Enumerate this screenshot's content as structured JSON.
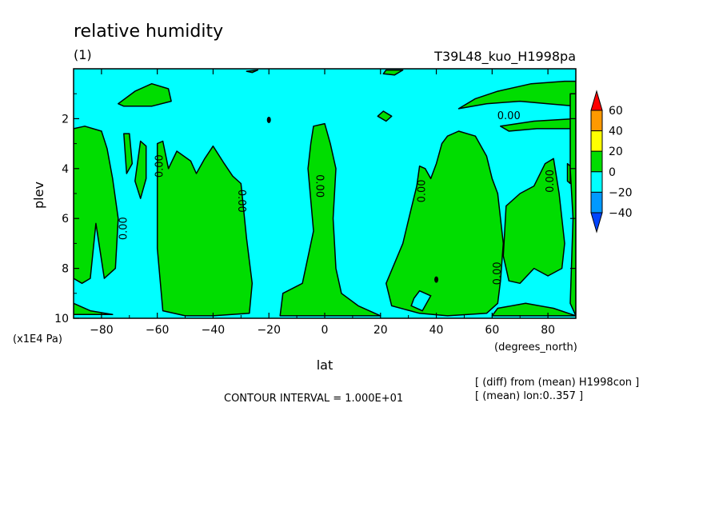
{
  "chart_data": {
    "type": "contour",
    "title": "relative humidity",
    "subtitle": "(1)",
    "experiment": "T39L48_kuo_H1998pa",
    "xlabel": "lat",
    "xunits": "(degrees_north)",
    "ylabel": "plev",
    "yunits": "(x1E4 Pa)",
    "xlim": [
      -90,
      90
    ],
    "ylim": [
      10,
      0
    ],
    "x_ticks": [
      -80,
      -60,
      -40,
      -20,
      0,
      20,
      40,
      60,
      80
    ],
    "y_ticks": [
      2,
      4,
      6,
      8,
      10
    ],
    "contour_interval_text": "CONTOUR INTERVAL = 1.000E+01",
    "contour_label": "0.00",
    "notes": [
      "[ (diff) from (mean) H1998con ]",
      "[ (mean) lon:0..357 ]"
    ],
    "colorbar": {
      "levels": [
        60,
        40,
        20,
        0,
        -20,
        -40
      ],
      "colors": [
        "#ff0000",
        "#ff9900",
        "#ffff00",
        "#00dd00",
        "#00ffff",
        "#0099ff",
        "#0044ff"
      ]
    },
    "background_color": "#00ffff",
    "positive_region_color": "#00dd00",
    "positive_regions": [
      {
        "name": "lower-north-tip",
        "points": [
          [
            -90,
            9.4
          ],
          [
            -84,
            9.7
          ],
          [
            -76,
            9.85
          ],
          [
            -90,
            9.85
          ]
        ]
      },
      {
        "name": "top-south-blob",
        "points": [
          [
            -74,
            1.4
          ],
          [
            -68,
            0.9
          ],
          [
            -62,
            0.6
          ],
          [
            -56,
            0.8
          ],
          [
            -55,
            1.3
          ],
          [
            -62,
            1.5
          ],
          [
            -72,
            1.5
          ]
        ]
      },
      {
        "name": "top-mid-sliver",
        "points": [
          [
            -28,
            0.1
          ],
          [
            -24,
            0.05
          ],
          [
            -26,
            0.15
          ]
        ]
      },
      {
        "name": "top-center-sliver",
        "points": [
          [
            22,
            0.05
          ],
          [
            28,
            0.05
          ],
          [
            25,
            0.25
          ],
          [
            21,
            0.2
          ]
        ]
      },
      {
        "name": "small-blob-20",
        "points": [
          [
            19,
            1.9
          ],
          [
            21,
            1.7
          ],
          [
            24,
            1.9
          ],
          [
            22,
            2.1
          ]
        ]
      },
      {
        "name": "top-north-blob",
        "points": [
          [
            48,
            1.6
          ],
          [
            54,
            1.2
          ],
          [
            62,
            0.9
          ],
          [
            74,
            0.6
          ],
          [
            86,
            0.5
          ],
          [
            90,
            0.5
          ],
          [
            90,
            1.5
          ],
          [
            80,
            1.4
          ],
          [
            70,
            1.3
          ],
          [
            58,
            1.4
          ]
        ]
      },
      {
        "name": "north-strip",
        "points": [
          [
            63,
            2.3
          ],
          [
            75,
            2.1
          ],
          [
            90,
            2.0
          ],
          [
            90,
            2.4
          ],
          [
            76,
            2.4
          ],
          [
            66,
            2.5
          ]
        ]
      },
      {
        "name": "south-west-column",
        "points": [
          [
            -90,
            2.4
          ],
          [
            -86,
            2.3
          ],
          [
            -80,
            2.5
          ],
          [
            -78,
            3.2
          ],
          [
            -76,
            4.4
          ],
          [
            -74,
            6.0
          ],
          [
            -75,
            8.0
          ],
          [
            -79,
            8.4
          ],
          [
            -82,
            6.2
          ],
          [
            -84,
            8.4
          ],
          [
            -87,
            8.6
          ],
          [
            -90,
            8.4
          ]
        ]
      },
      {
        "name": "south-column-2",
        "points": [
          [
            -72,
            2.6
          ],
          [
            -70,
            2.6
          ],
          [
            -69,
            3.8
          ],
          [
            -71,
            4.2
          ]
        ]
      },
      {
        "name": "south-column-3",
        "points": [
          [
            -66,
            2.9
          ],
          [
            -64,
            3.1
          ],
          [
            -64,
            4.4
          ],
          [
            -66,
            5.2
          ],
          [
            -68,
            4.5
          ]
        ]
      },
      {
        "name": "south-mid-block",
        "points": [
          [
            -60,
            3.0
          ],
          [
            -58,
            2.9
          ],
          [
            -56,
            4.0
          ],
          [
            -53,
            3.3
          ],
          [
            -48,
            3.7
          ],
          [
            -46,
            4.2
          ],
          [
            -43,
            3.6
          ],
          [
            -40,
            3.1
          ],
          [
            -36,
            3.8
          ],
          [
            -33,
            4.3
          ],
          [
            -30,
            4.6
          ],
          [
            -28,
            6.8
          ],
          [
            -26,
            8.6
          ],
          [
            -27,
            9.8
          ],
          [
            -40,
            9.9
          ],
          [
            -50,
            9.9
          ],
          [
            -58,
            9.7
          ],
          [
            -60,
            7.2
          ]
        ]
      },
      {
        "name": "equatorial-column",
        "points": [
          [
            -4,
            2.3
          ],
          [
            0,
            2.2
          ],
          [
            2,
            3.0
          ],
          [
            4,
            4.0
          ],
          [
            3,
            6.0
          ],
          [
            4,
            8.0
          ],
          [
            6,
            9.0
          ],
          [
            12,
            9.5
          ],
          [
            18,
            9.8
          ],
          [
            20,
            9.9
          ],
          [
            -16,
            9.9
          ],
          [
            -15,
            9.0
          ],
          [
            -8,
            8.6
          ],
          [
            -4,
            6.5
          ],
          [
            -6,
            4.0
          ],
          [
            -5,
            3.0
          ]
        ]
      },
      {
        "name": "north-mid-block",
        "points": [
          [
            34,
            3.9
          ],
          [
            36,
            4.0
          ],
          [
            38,
            4.4
          ],
          [
            40,
            3.8
          ],
          [
            42,
            3.0
          ],
          [
            44,
            2.7
          ],
          [
            48,
            2.5
          ],
          [
            54,
            2.7
          ],
          [
            58,
            3.5
          ],
          [
            60,
            4.4
          ],
          [
            62,
            5.0
          ],
          [
            63,
            6.0
          ],
          [
            64,
            7.0
          ],
          [
            63,
            8.5
          ],
          [
            62,
            9.4
          ],
          [
            58,
            9.8
          ],
          [
            44,
            9.9
          ],
          [
            34,
            9.8
          ],
          [
            24,
            9.5
          ],
          [
            22,
            8.6
          ],
          [
            28,
            7.0
          ],
          [
            31,
            5.6
          ],
          [
            33,
            4.7
          ]
        ]
      },
      {
        "name": "north-east-block",
        "points": [
          [
            65,
            5.5
          ],
          [
            70,
            5.0
          ],
          [
            75,
            4.7
          ],
          [
            79,
            3.8
          ],
          [
            82,
            3.6
          ],
          [
            84,
            5.0
          ],
          [
            86,
            7.0
          ],
          [
            85,
            8.0
          ],
          [
            80,
            8.3
          ],
          [
            75,
            8.0
          ],
          [
            70,
            8.6
          ],
          [
            66,
            8.5
          ],
          [
            64,
            7.5
          ]
        ]
      },
      {
        "name": "north-east-tip",
        "points": [
          [
            87,
            3.8
          ],
          [
            88,
            3.9
          ],
          [
            88,
            4.6
          ],
          [
            87,
            4.5
          ]
        ]
      },
      {
        "name": "north-east-column",
        "points": [
          [
            88,
            1.0
          ],
          [
            90,
            1.0
          ],
          [
            90,
            9.9
          ],
          [
            88,
            9.4
          ],
          [
            89,
            6.0
          ],
          [
            88,
            4.0
          ]
        ]
      },
      {
        "name": "bottom-north-strip",
        "points": [
          [
            62,
            9.6
          ],
          [
            72,
            9.4
          ],
          [
            82,
            9.6
          ],
          [
            90,
            9.9
          ],
          [
            60,
            9.9
          ]
        ]
      }
    ],
    "cyan_holes": [
      {
        "name": "hole-near-40",
        "points": [
          [
            32,
            9.2
          ],
          [
            34,
            8.9
          ],
          [
            38,
            9.1
          ],
          [
            35,
            9.7
          ],
          [
            31,
            9.5
          ]
        ]
      }
    ],
    "small_marks": [
      [
        -20,
        2.05
      ],
      [
        40,
        8.45
      ]
    ],
    "contour_labels": [
      {
        "x": -72,
        "y": 6.4,
        "angle": -90
      },
      {
        "x": -59,
        "y": 3.9,
        "angle": -90
      },
      {
        "x": -30,
        "y": 5.3,
        "angle": 90
      },
      {
        "x": -2,
        "y": 4.7,
        "angle": 90
      },
      {
        "x": 35,
        "y": 4.9,
        "angle": -90
      },
      {
        "x": 62,
        "y": 8.2,
        "angle": -90
      },
      {
        "x": 81,
        "y": 4.5,
        "angle": -90
      },
      {
        "x": 66,
        "y": 1.9,
        "angle": 0
      }
    ]
  }
}
